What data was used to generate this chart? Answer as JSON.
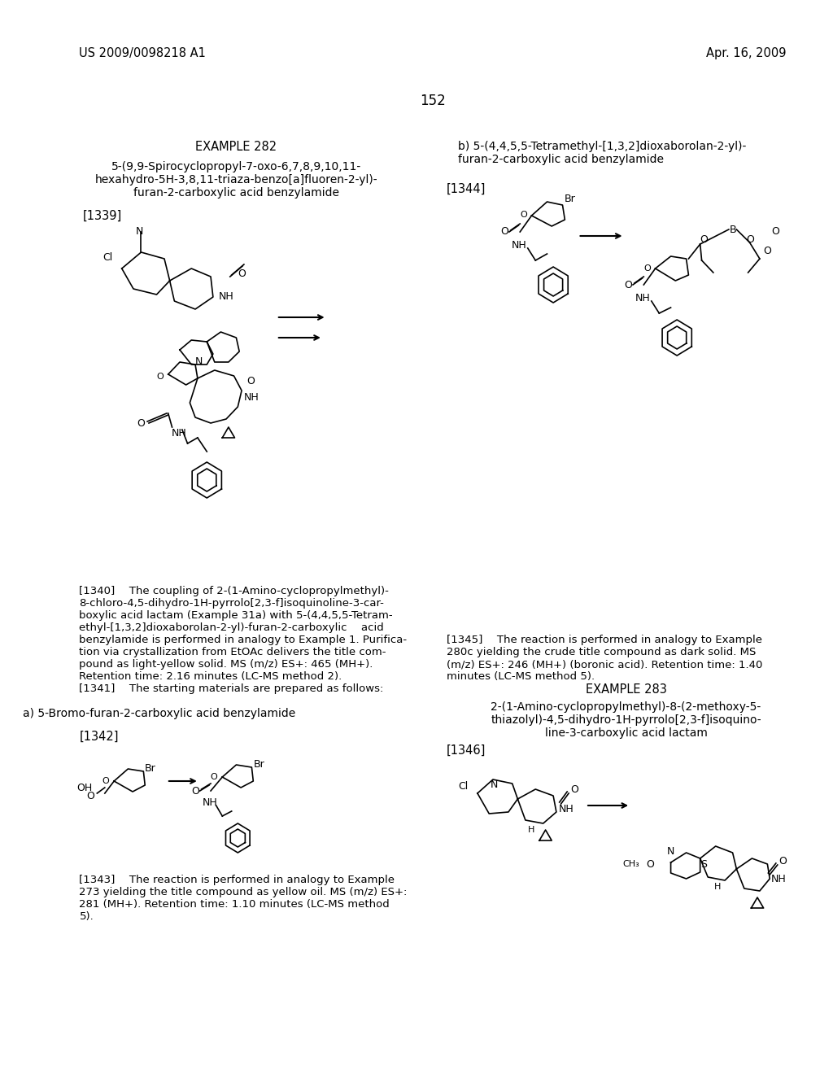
{
  "bg_color": "#ffffff",
  "header_left": "US 2009/0098218 A1",
  "header_right": "Apr. 16, 2009",
  "page_number": "152",
  "example282_title": "EXAMPLE 282",
  "example282_compound": "5-(9,9-Spirocyclopropyl-7-oxo-6,7,8,9,10,11-\nhexahydro-5H-3,8,11-triaza-benzo[a]fluoren-2-yl)-\nfuran-2-carboxylic acid benzylamide",
  "ref1339": "[1339]",
  "ref1340_text": "[1340]  The coupling of 2-(1-Amino-cyclopropylmethyl)-\n8-chloro-4,5-dihydro-1H-pyrrolo[2,3-f]isoquinoline-3-car-\nboxylic acid lactam (Example 31a) with 5-(4,4,5,5-Tetram-\nethyl-[1,3,2]dioxaborolan-2-yl)-furan-2-carboxylic  acid\nbenzylamide is performed in analogy to Example 1. Purifica-\ntion via crystallization from EtOAc delivers the title com-\npound as light-yellow solid. MS (m/z) ES+: 465 (MH+).\nRetention time: 2.16 minutes (LC-MS method 2).",
  "ref1341_text": "[1341]  The starting materials are prepared as follows:",
  "part_a_label": "a) 5-Bromo-furan-2-carboxylic acid benzylamide",
  "ref1342": "[1342]",
  "ref1343_text": "[1343]  The reaction is performed in analogy to Example\n273 yielding the title compound as yellow oil. MS (m/z) ES+:\n281 (MH+). Retention time: 1.10 minutes (LC-MS method\n5).",
  "part_b_label": "b) 5-(4,4,5,5-Tetramethyl-[1,3,2]dioxaborolan-2-yl)-\nfuran-2-carboxylic acid benzylamide",
  "ref1344": "[1344]",
  "ref1345_text": "[1345]  The reaction is performed in analogy to Example\n280c yielding the crude title compound as dark solid. MS\n(m/z) ES+: 246 (MH+) (boronic acid). Retention time: 1.40\nminutes (LC-MS method 5).",
  "example283_title": "EXAMPLE 283",
  "example283_compound": "2-(1-Amino-cyclopropylmethyl)-8-(2-methoxy-5-\nthiazolyl)-4,5-dihydro-1H-pyrrolo[2,3-f]isoquino-\nline-3-carboxylic acid lactam",
  "ref1346": "[1346]"
}
